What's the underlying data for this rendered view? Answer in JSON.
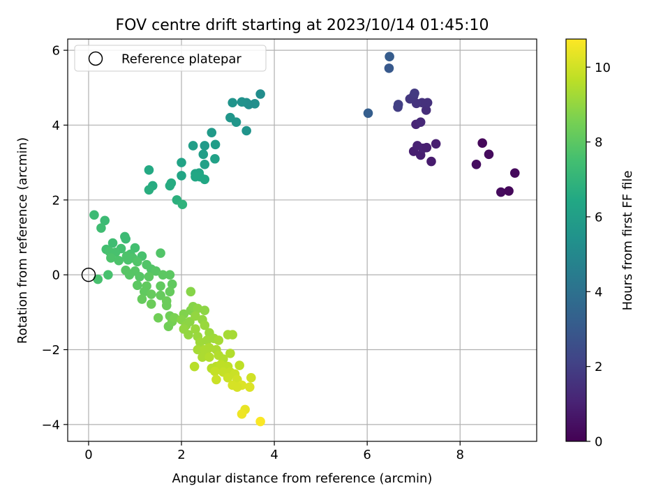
{
  "chart_data": {
    "type": "scatter",
    "title": "FOV centre drift starting at 2023/10/14 01:45:10",
    "xlabel": "Angular distance from reference (arcmin)",
    "ylabel": "Rotation from reference (arcmin)",
    "xlim": [
      -0.45,
      9.65
    ],
    "ylim": [
      -4.45,
      6.3
    ],
    "xticks": [
      0,
      2,
      4,
      6,
      8
    ],
    "yticks": [
      -4,
      -2,
      0,
      2,
      4,
      6
    ],
    "grid": true,
    "legend": {
      "placement": "top-left",
      "entries": [
        "Reference platepar"
      ]
    },
    "reference_point": {
      "x": 0,
      "y": 0,
      "label": "Reference platepar"
    },
    "colorbar": {
      "label": "Hours from first FF file",
      "colormap": "viridis",
      "range": [
        0,
        10.75
      ],
      "ticks": [
        0,
        2,
        4,
        6,
        8,
        10
      ]
    },
    "points": [
      {
        "x": 8.48,
        "y": 3.52,
        "c": 0.2
      },
      {
        "x": 8.62,
        "y": 3.22,
        "c": 0.3
      },
      {
        "x": 8.35,
        "y": 2.95,
        "c": 0.35
      },
      {
        "x": 9.18,
        "y": 2.72,
        "c": 0.25
      },
      {
        "x": 8.88,
        "y": 2.21,
        "c": 0.3
      },
      {
        "x": 9.05,
        "y": 2.24,
        "c": 0.2
      },
      {
        "x": 7.38,
        "y": 3.03,
        "c": 0.8
      },
      {
        "x": 7.15,
        "y": 3.2,
        "c": 0.9
      },
      {
        "x": 7.0,
        "y": 3.3,
        "c": 0.9
      },
      {
        "x": 7.08,
        "y": 3.45,
        "c": 1.0
      },
      {
        "x": 7.2,
        "y": 3.38,
        "c": 1.0
      },
      {
        "x": 7.28,
        "y": 3.4,
        "c": 0.95
      },
      {
        "x": 7.48,
        "y": 3.5,
        "c": 0.9
      },
      {
        "x": 7.05,
        "y": 4.02,
        "c": 1.1
      },
      {
        "x": 7.15,
        "y": 4.08,
        "c": 1.2
      },
      {
        "x": 7.27,
        "y": 4.4,
        "c": 1.4
      },
      {
        "x": 7.3,
        "y": 4.6,
        "c": 1.5
      },
      {
        "x": 7.18,
        "y": 4.6,
        "c": 1.5
      },
      {
        "x": 7.06,
        "y": 4.58,
        "c": 1.6
      },
      {
        "x": 7.0,
        "y": 4.78,
        "c": 1.7
      },
      {
        "x": 6.92,
        "y": 4.7,
        "c": 1.7
      },
      {
        "x": 7.02,
        "y": 4.85,
        "c": 1.8
      },
      {
        "x": 6.66,
        "y": 4.48,
        "c": 1.9
      },
      {
        "x": 6.67,
        "y": 4.55,
        "c": 2.0
      },
      {
        "x": 6.02,
        "y": 4.32,
        "c": 3.2
      },
      {
        "x": 6.47,
        "y": 5.52,
        "c": 3.0
      },
      {
        "x": 6.48,
        "y": 5.83,
        "c": 3.1
      },
      {
        "x": 3.7,
        "y": 4.83,
        "c": 5.2
      },
      {
        "x": 3.58,
        "y": 4.57,
        "c": 5.3
      },
      {
        "x": 3.45,
        "y": 4.55,
        "c": 5.2
      },
      {
        "x": 3.4,
        "y": 4.6,
        "c": 5.3
      },
      {
        "x": 3.3,
        "y": 4.62,
        "c": 5.4
      },
      {
        "x": 3.1,
        "y": 4.6,
        "c": 5.5
      },
      {
        "x": 3.05,
        "y": 4.2,
        "c": 5.6
      },
      {
        "x": 3.18,
        "y": 4.08,
        "c": 5.6
      },
      {
        "x": 3.4,
        "y": 3.85,
        "c": 5.5
      },
      {
        "x": 2.65,
        "y": 3.8,
        "c": 5.8
      },
      {
        "x": 2.5,
        "y": 3.45,
        "c": 5.8
      },
      {
        "x": 2.73,
        "y": 3.48,
        "c": 5.9
      },
      {
        "x": 2.25,
        "y": 3.45,
        "c": 6.0
      },
      {
        "x": 2.47,
        "y": 3.22,
        "c": 6.0
      },
      {
        "x": 2.72,
        "y": 3.1,
        "c": 6.1
      },
      {
        "x": 2.5,
        "y": 2.95,
        "c": 6.1
      },
      {
        "x": 2.0,
        "y": 3.0,
        "c": 6.2
      },
      {
        "x": 2.0,
        "y": 2.65,
        "c": 6.3
      },
      {
        "x": 2.3,
        "y": 2.7,
        "c": 6.3
      },
      {
        "x": 2.38,
        "y": 2.72,
        "c": 6.3
      },
      {
        "x": 2.4,
        "y": 2.62,
        "c": 6.4
      },
      {
        "x": 2.3,
        "y": 2.62,
        "c": 6.4
      },
      {
        "x": 2.5,
        "y": 2.55,
        "c": 6.4
      },
      {
        "x": 1.3,
        "y": 2.8,
        "c": 6.5
      },
      {
        "x": 1.78,
        "y": 2.45,
        "c": 6.6
      },
      {
        "x": 1.75,
        "y": 2.38,
        "c": 6.6
      },
      {
        "x": 1.38,
        "y": 2.38,
        "c": 6.6
      },
      {
        "x": 1.3,
        "y": 2.27,
        "c": 6.7
      },
      {
        "x": 1.9,
        "y": 2.0,
        "c": 6.8
      },
      {
        "x": 2.02,
        "y": 1.88,
        "c": 6.9
      },
      {
        "x": 0.12,
        "y": 1.6,
        "c": 7.3
      },
      {
        "x": 0.35,
        "y": 1.45,
        "c": 7.3
      },
      {
        "x": 0.27,
        "y": 1.25,
        "c": 7.4
      },
      {
        "x": 0.78,
        "y": 1.02,
        "c": 7.3
      },
      {
        "x": 0.8,
        "y": 0.96,
        "c": 7.3
      },
      {
        "x": 0.52,
        "y": 0.85,
        "c": 7.4
      },
      {
        "x": 1.0,
        "y": 0.72,
        "c": 7.5
      },
      {
        "x": 0.7,
        "y": 0.7,
        "c": 7.5
      },
      {
        "x": 0.38,
        "y": 0.68,
        "c": 7.5
      },
      {
        "x": 0.45,
        "y": 0.62,
        "c": 7.6
      },
      {
        "x": 0.58,
        "y": 0.6,
        "c": 7.6
      },
      {
        "x": 0.9,
        "y": 0.55,
        "c": 7.6
      },
      {
        "x": 1.15,
        "y": 0.5,
        "c": 7.6
      },
      {
        "x": 0.82,
        "y": 0.5,
        "c": 7.7
      },
      {
        "x": 0.95,
        "y": 0.45,
        "c": 7.7
      },
      {
        "x": 0.48,
        "y": 0.45,
        "c": 7.7
      },
      {
        "x": 0.65,
        "y": 0.38,
        "c": 7.7
      },
      {
        "x": 0.85,
        "y": 0.4,
        "c": 7.7
      },
      {
        "x": 1.05,
        "y": 0.35,
        "c": 7.8
      },
      {
        "x": 1.55,
        "y": 0.58,
        "c": 7.8
      },
      {
        "x": 1.25,
        "y": 0.27,
        "c": 7.8
      },
      {
        "x": 1.35,
        "y": 0.15,
        "c": 7.8
      },
      {
        "x": 1.45,
        "y": 0.1,
        "c": 7.9
      },
      {
        "x": 0.8,
        "y": 0.12,
        "c": 7.9
      },
      {
        "x": 1.0,
        "y": 0.1,
        "c": 7.9
      },
      {
        "x": 0.88,
        "y": 0.0,
        "c": 7.9
      },
      {
        "x": 1.1,
        "y": -0.05,
        "c": 7.9
      },
      {
        "x": 1.3,
        "y": -0.05,
        "c": 8.0
      },
      {
        "x": 1.6,
        "y": 0.0,
        "c": 8.0
      },
      {
        "x": 1.75,
        "y": 0.0,
        "c": 8.0
      },
      {
        "x": 0.42,
        "y": 0.0,
        "c": 7.6
      },
      {
        "x": 0.2,
        "y": -0.12,
        "c": 7.6
      },
      {
        "x": 1.05,
        "y": -0.28,
        "c": 8.0
      },
      {
        "x": 1.25,
        "y": -0.3,
        "c": 8.1
      },
      {
        "x": 1.55,
        "y": -0.3,
        "c": 8.1
      },
      {
        "x": 1.8,
        "y": -0.25,
        "c": 8.1
      },
      {
        "x": 1.2,
        "y": -0.45,
        "c": 8.1
      },
      {
        "x": 1.35,
        "y": -0.52,
        "c": 8.2
      },
      {
        "x": 1.55,
        "y": -0.55,
        "c": 8.2
      },
      {
        "x": 1.75,
        "y": -0.45,
        "c": 8.2
      },
      {
        "x": 1.15,
        "y": -0.65,
        "c": 8.2
      },
      {
        "x": 1.35,
        "y": -0.78,
        "c": 8.3
      },
      {
        "x": 1.68,
        "y": -0.7,
        "c": 8.3
      },
      {
        "x": 1.68,
        "y": -0.82,
        "c": 8.3
      },
      {
        "x": 1.5,
        "y": -1.15,
        "c": 8.4
      },
      {
        "x": 1.75,
        "y": -1.1,
        "c": 8.4
      },
      {
        "x": 1.72,
        "y": -1.38,
        "c": 8.4
      },
      {
        "x": 1.8,
        "y": -1.25,
        "c": 8.5
      },
      {
        "x": 1.85,
        "y": -1.15,
        "c": 8.6
      },
      {
        "x": 2.05,
        "y": -1.05,
        "c": 8.7
      },
      {
        "x": 2.2,
        "y": -0.95,
        "c": 8.7
      },
      {
        "x": 2.25,
        "y": -0.85,
        "c": 8.8
      },
      {
        "x": 2.2,
        "y": -0.45,
        "c": 8.8
      },
      {
        "x": 2.0,
        "y": -1.2,
        "c": 8.8
      },
      {
        "x": 2.1,
        "y": -1.35,
        "c": 8.9
      },
      {
        "x": 2.18,
        "y": -1.25,
        "c": 8.9
      },
      {
        "x": 2.35,
        "y": -0.9,
        "c": 8.9
      },
      {
        "x": 2.5,
        "y": -0.95,
        "c": 8.9
      },
      {
        "x": 2.3,
        "y": -1.1,
        "c": 9.0
      },
      {
        "x": 2.45,
        "y": -1.2,
        "c": 9.0
      },
      {
        "x": 2.05,
        "y": -1.45,
        "c": 9.0
      },
      {
        "x": 2.15,
        "y": -1.6,
        "c": 9.0
      },
      {
        "x": 2.3,
        "y": -1.45,
        "c": 9.1
      },
      {
        "x": 2.5,
        "y": -1.35,
        "c": 9.1
      },
      {
        "x": 2.35,
        "y": -1.65,
        "c": 9.1
      },
      {
        "x": 2.6,
        "y": -1.55,
        "c": 9.1
      },
      {
        "x": 2.4,
        "y": -1.8,
        "c": 9.2
      },
      {
        "x": 2.55,
        "y": -1.75,
        "c": 9.2
      },
      {
        "x": 2.7,
        "y": -1.7,
        "c": 9.2
      },
      {
        "x": 2.8,
        "y": -1.75,
        "c": 9.3
      },
      {
        "x": 3.0,
        "y": -1.6,
        "c": 9.3
      },
      {
        "x": 3.1,
        "y": -1.6,
        "c": 9.3
      },
      {
        "x": 2.35,
        "y": -2.0,
        "c": 9.3
      },
      {
        "x": 2.5,
        "y": -2.0,
        "c": 9.4
      },
      {
        "x": 2.6,
        "y": -1.95,
        "c": 9.4
      },
      {
        "x": 2.75,
        "y": -2.0,
        "c": 9.4
      },
      {
        "x": 2.45,
        "y": -2.2,
        "c": 9.4
      },
      {
        "x": 2.6,
        "y": -2.2,
        "c": 9.5
      },
      {
        "x": 2.8,
        "y": -2.15,
        "c": 9.5
      },
      {
        "x": 2.9,
        "y": -2.25,
        "c": 9.5
      },
      {
        "x": 3.05,
        "y": -2.1,
        "c": 9.5
      },
      {
        "x": 2.28,
        "y": -2.45,
        "c": 9.6
      },
      {
        "x": 2.65,
        "y": -2.5,
        "c": 9.6
      },
      {
        "x": 2.75,
        "y": -2.45,
        "c": 9.6
      },
      {
        "x": 2.85,
        "y": -2.4,
        "c": 9.7
      },
      {
        "x": 3.0,
        "y": -2.45,
        "c": 9.7
      },
      {
        "x": 3.25,
        "y": -2.42,
        "c": 9.7
      },
      {
        "x": 2.72,
        "y": -2.58,
        "c": 9.8
      },
      {
        "x": 2.9,
        "y": -2.6,
        "c": 9.8
      },
      {
        "x": 3.05,
        "y": -2.6,
        "c": 9.8
      },
      {
        "x": 3.15,
        "y": -2.65,
        "c": 9.9
      },
      {
        "x": 2.75,
        "y": -2.8,
        "c": 9.9
      },
      {
        "x": 3.0,
        "y": -2.75,
        "c": 9.9
      },
      {
        "x": 3.2,
        "y": -2.8,
        "c": 10.0
      },
      {
        "x": 3.5,
        "y": -2.75,
        "c": 10.0
      },
      {
        "x": 3.1,
        "y": -2.95,
        "c": 10.1
      },
      {
        "x": 3.3,
        "y": -2.95,
        "c": 10.2
      },
      {
        "x": 3.47,
        "y": -3.0,
        "c": 10.2
      },
      {
        "x": 3.2,
        "y": -3.0,
        "c": 10.1
      },
      {
        "x": 3.37,
        "y": -3.6,
        "c": 10.4
      },
      {
        "x": 3.3,
        "y": -3.72,
        "c": 10.5
      },
      {
        "x": 3.7,
        "y": -3.92,
        "c": 10.7
      }
    ]
  }
}
